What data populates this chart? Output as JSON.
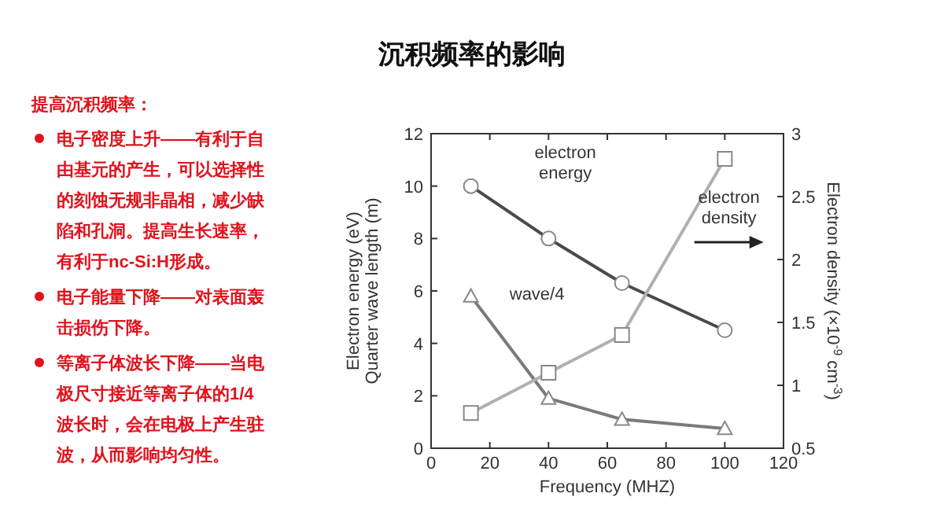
{
  "chart_data": {
    "type": "line",
    "title": "沉积频率的影响",
    "annotations": [
      "提高沉积频率：",
      "电子密度上升——有利于自由基元的产生，可以选择性的刻蚀无规非晶相，减少缺陷和孔洞。提高生长速率，有利于nc-Si:H形成。",
      "电子能量下降——对表面轰击损伤下降。",
      "等离子体波长下降——当电极尺寸接近等离子体的1/4波长时，会在电极上产生驻波，从而影响均匀性。"
    ],
    "xlabel": "Frequency (MHZ)",
    "ylabel": "Electron energy (eV)\nQuarter wave length (m)",
    "y2label": "Electron density (×10$^{-9}$ cm$^{-3}$)",
    "x": [
      13.56,
      40,
      65,
      100
    ],
    "series": [
      {
        "name": "electron energy",
        "color": "#4a4a4a",
        "marker": "circle",
        "values": [
          10,
          8,
          6.3,
          4.5
        ]
      },
      {
        "name": "wave/4",
        "color": "#7a7a7a",
        "marker": "triangle",
        "values": [
          5.8,
          1.9,
          1.1,
          0.75
        ]
      },
      {
        "name": "electron density",
        "color": "#b0b0b0",
        "marker": "square",
        "axis": "y2",
        "values": [
          0.78,
          1.1,
          1.4,
          2.8
        ]
      }
    ],
    "xlim": [
      0,
      120
    ],
    "xticks": [
      0,
      20,
      40,
      60,
      80,
      100,
      120
    ],
    "ylim": [
      0,
      12
    ],
    "yticks": [
      0,
      2,
      4,
      6,
      8,
      10,
      12
    ],
    "y2lim": [
      0.5,
      3
    ],
    "y2ticks": [
      0.5,
      1,
      1.5,
      2,
      2.5,
      3
    ],
    "grid": false,
    "line_style": "solid"
  }
}
